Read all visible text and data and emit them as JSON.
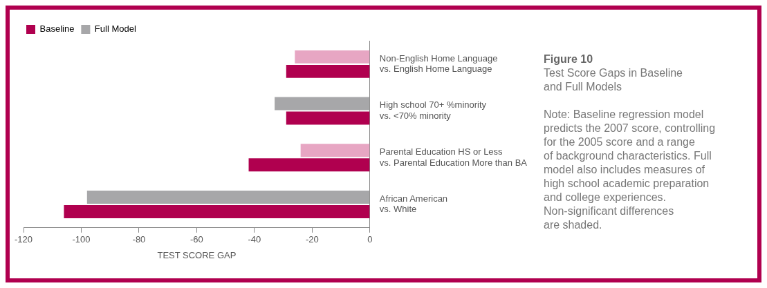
{
  "chart_data": {
    "type": "bar",
    "orientation": "horizontal",
    "title": "Figure 10",
    "subtitle": "Test Score Gaps in Baseline\nand Full Models",
    "xlabel": "TEST SCORE GAP",
    "categories": [
      "Non-English Home Language\nvs. English Home Language",
      "High school 70+ %minority\nvs. <70% minority",
      "Parental Education HS or Less\nvs. Parental Education More than BA",
      "African American\nvs. White"
    ],
    "series": [
      {
        "name": "Full Model",
        "color": "#a7a7a9",
        "colors": [
          "#e7a6c3",
          "#a7a7a9",
          "#e7a6c3",
          "#a7a7a9"
        ],
        "values": [
          -26,
          -33,
          -24,
          -98
        ]
      },
      {
        "name": "Baseline",
        "color": "#b0004f",
        "values": [
          -29,
          -29,
          -42,
          -106
        ]
      }
    ],
    "xlim": [
      -120,
      0
    ],
    "xticks": [
      -120,
      -100,
      -80,
      -60,
      -40,
      -20,
      0
    ],
    "grid": false,
    "legend": "top left",
    "annotations": [
      "Note: Baseline regression model\npredicts the 2007 score, controlling\nfor the 2005 score and a range\nof background characteristics. Full\nmodel also includes measures of\nhigh school academic preparation\nand college experiences.\nNon-significant differences\nare shaded."
    ]
  }
}
